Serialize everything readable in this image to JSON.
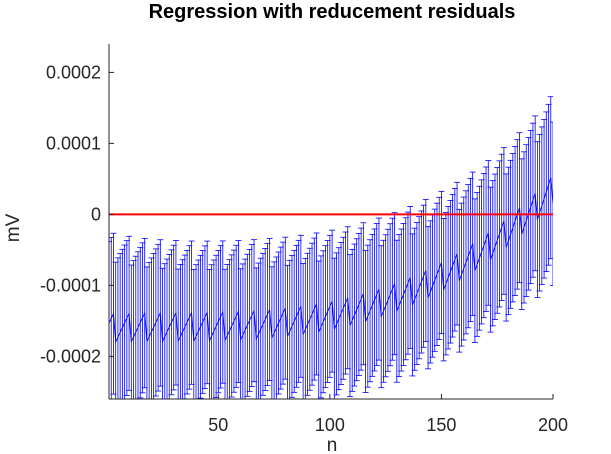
{
  "chart_data": {
    "type": "line",
    "title": "Regression with reducement residuals",
    "xlabel": "n",
    "ylabel": "mV",
    "xlim": [
      1,
      200
    ],
    "ylim": [
      -0.00026,
      0.00024
    ],
    "xticks": [
      {
        "value": 50,
        "label": "50"
      },
      {
        "value": 100,
        "label": "100"
      },
      {
        "value": 150,
        "label": "150"
      },
      {
        "value": 200,
        "label": "200"
      }
    ],
    "yticks": [
      {
        "value": -0.0002,
        "label": "-0.0002"
      },
      {
        "value": -0.0001,
        "label": "-0.0001"
      },
      {
        "value": 0,
        "label": "0"
      },
      {
        "value": 0.0001,
        "label": "0.0001"
      },
      {
        "value": 0.0002,
        "label": "0.0002"
      }
    ],
    "grid": false,
    "legend": "none",
    "series": [
      {
        "style": "errorbar",
        "color": "#0000ff",
        "error_halfwidth": 0.0001,
        "error_halfwidth_end_extra": 1.5e-05,
        "trend_poly": [
          -0.00016,
          2e-05,
          -0.000115,
          0.00029
        ],
        "sawtooth_period": 7,
        "sawtooth_amplitude": 2e-05
      },
      {
        "style": "line",
        "color": "#ff0000",
        "x": [
          1,
          200
        ],
        "y": [
          0,
          0
        ]
      }
    ]
  }
}
